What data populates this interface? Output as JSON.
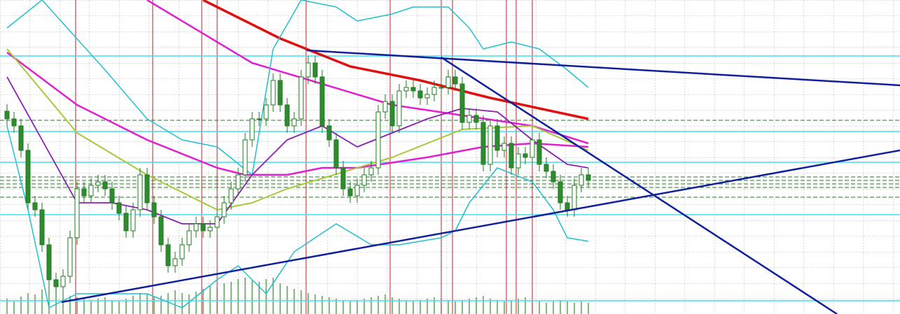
{
  "chart_data": {
    "type": "candlestick",
    "xlim": [
      -1,
      127.5
    ],
    "ylim": [
      0,
      449
    ],
    "bull_color": "#ffffff",
    "bear_color": "#2e8b2e",
    "outline_color": "#1e7a1e",
    "open": [
      290,
      279,
      269,
      234,
      159,
      149,
      99,
      49,
      39,
      54,
      109,
      179,
      169,
      184,
      189,
      179,
      159,
      144,
      119,
      149,
      199,
      159,
      139,
      99,
      69,
      79,
      99,
      119,
      129,
      119,
      124,
      139,
      159,
      179,
      199,
      249,
      279,
      279,
      299,
      334,
      299,
      269,
      279,
      339,
      359,
      339,
      269,
      249,
      209,
      179,
      169,
      184,
      199,
      209,
      289,
      304,
      269,
      319,
      324,
      319,
      309,
      314,
      324,
      324,
      339,
      329,
      274,
      284,
      274,
      214,
      269,
      234,
      244,
      209,
      229,
      224,
      249,
      214,
      204,
      189,
      159,
      149,
      184,
      199
    ],
    "high": [
      300,
      289,
      279,
      244,
      169,
      159,
      109,
      59,
      64,
      119,
      189,
      189,
      194,
      199,
      199,
      189,
      169,
      154,
      159,
      209,
      209,
      169,
      149,
      109,
      89,
      109,
      129,
      139,
      139,
      134,
      149,
      169,
      189,
      209,
      259,
      289,
      289,
      309,
      344,
      344,
      309,
      289,
      349,
      369,
      369,
      349,
      279,
      259,
      219,
      189,
      194,
      209,
      219,
      299,
      314,
      314,
      329,
      334,
      334,
      329,
      324,
      334,
      334,
      349,
      349,
      339,
      294,
      294,
      284,
      279,
      279,
      254,
      254,
      239,
      239,
      259,
      259,
      224,
      214,
      199,
      169,
      194,
      209,
      209
    ],
    "low": [
      269,
      259,
      224,
      149,
      139,
      89,
      39,
      29,
      29,
      44,
      99,
      159,
      159,
      174,
      169,
      149,
      134,
      109,
      109,
      139,
      149,
      129,
      89,
      59,
      59,
      69,
      89,
      109,
      109,
      109,
      114,
      129,
      149,
      169,
      189,
      239,
      269,
      269,
      289,
      289,
      259,
      259,
      269,
      329,
      329,
      259,
      239,
      199,
      169,
      159,
      159,
      174,
      189,
      199,
      279,
      259,
      259,
      309,
      309,
      299,
      299,
      304,
      314,
      314,
      319,
      264,
      264,
      264,
      204,
      204,
      224,
      224,
      199,
      199,
      214,
      214,
      204,
      194,
      179,
      149,
      139,
      139,
      174,
      181
    ],
    "close": [
      279,
      269,
      234,
      159,
      149,
      99,
      49,
      39,
      54,
      109,
      179,
      169,
      184,
      189,
      179,
      159,
      144,
      119,
      149,
      199,
      159,
      139,
      99,
      69,
      79,
      99,
      119,
      129,
      119,
      124,
      139,
      159,
      179,
      199,
      249,
      279,
      279,
      299,
      334,
      299,
      269,
      279,
      339,
      359,
      339,
      269,
      249,
      209,
      179,
      169,
      184,
      199,
      209,
      289,
      304,
      269,
      319,
      324,
      319,
      309,
      314,
      324,
      324,
      339,
      329,
      274,
      284,
      274,
      214,
      269,
      234,
      244,
      209,
      229,
      224,
      249,
      214,
      204,
      189,
      159,
      149,
      184,
      199,
      191
    ],
    "volume_color": "#2e8b2e",
    "volume": [
      22,
      18,
      25,
      30,
      28,
      35,
      40,
      38,
      30,
      26,
      24,
      22,
      20,
      22,
      24,
      20,
      18,
      22,
      26,
      30,
      28,
      24,
      26,
      30,
      34,
      30,
      28,
      32,
      36,
      40,
      38,
      44,
      46,
      50,
      52,
      48,
      46,
      50,
      52,
      44,
      40,
      36,
      34,
      30,
      28,
      26,
      24,
      22,
      20,
      18,
      20,
      22,
      24,
      26,
      28,
      24,
      22,
      20,
      18,
      20,
      22,
      24,
      22,
      20,
      18,
      20,
      22,
      24,
      26,
      22,
      20,
      18,
      20,
      22,
      24,
      20,
      18,
      16,
      18,
      20,
      18,
      16,
      18,
      16
    ],
    "series": [
      {
        "color": "#e01010",
        "width": 3.5,
        "x": [
          28,
          39,
          49,
          59,
          69,
          83
        ],
        "values": [
          449,
          394,
          354,
          334,
          309,
          279
        ]
      },
      {
        "color": "#e020d0",
        "width": 2.5,
        "x": [
          0,
          10,
          20,
          30,
          34,
          40,
          45,
          50,
          60,
          68,
          75,
          83
        ],
        "values": [
          374,
          299,
          249,
          209,
          199,
          199,
          209,
          209,
          224,
          239,
          244,
          239
        ]
      },
      {
        "color": "#e020d0",
        "width": 2.5,
        "x": [
          20,
          35,
          45,
          55,
          65,
          75,
          83
        ],
        "values": [
          449,
          359,
          329,
          299,
          284,
          269,
          244
        ]
      },
      {
        "color": "#a8c83a",
        "width": 2,
        "x": [
          0,
          10,
          20,
          30,
          35,
          40,
          50,
          55,
          65,
          75,
          83
        ],
        "values": [
          379,
          259,
          199,
          149,
          159,
          179,
          209,
          224,
          264,
          269,
          234
        ]
      },
      {
        "color": "#20c0d0",
        "width": 1.5,
        "x": [
          0,
          5,
          14,
          20,
          25,
          30,
          35,
          38,
          42,
          47,
          50,
          55,
          58,
          63,
          66,
          68,
          72,
          76,
          80,
          83
        ],
        "values": [
          409,
          449,
          349,
          279,
          249,
          239,
          199,
          379,
          449,
          439,
          419,
          429,
          439,
          439,
          409,
          379,
          389,
          379,
          349,
          324
        ]
      },
      {
        "color": "#20c0d0",
        "width": 1.5,
        "x": [
          0,
          3,
          6,
          10,
          20,
          25,
          30,
          33,
          37,
          41,
          47,
          52,
          56,
          62,
          64,
          66,
          70,
          75,
          78,
          80,
          83
        ],
        "values": [
          269,
          149,
          9,
          29,
          29,
          9,
          49,
          69,
          29,
          89,
          129,
          99,
          99,
          109,
          119,
          159,
          209,
          189,
          149,
          109,
          104
        ]
      },
      {
        "color": "#8a20b0",
        "width": 1.8,
        "x": [
          0,
          5,
          10,
          15,
          20,
          25,
          30,
          35,
          40,
          45,
          50,
          55,
          60,
          65,
          70,
          75,
          80,
          83
        ],
        "values": [
          339,
          249,
          159,
          159,
          149,
          129,
          129,
          199,
          249,
          269,
          239,
          259,
          279,
          294,
          289,
          249,
          214,
          209
        ]
      }
    ],
    "trendlines": [
      {
        "color": "#10209a",
        "x": [
          7.8,
          127.5
        ],
        "values": [
          17,
          234
        ]
      },
      {
        "color": "#10209a",
        "x": [
          42.8,
          127.5
        ],
        "values": [
          377,
          327
        ]
      },
      {
        "color": "#10209a",
        "x": [
          62,
          118.5
        ],
        "values": [
          367,
          0
        ]
      }
    ],
    "hlines": {
      "color": "#40e0f0",
      "values": [
        369,
        261,
        217,
        142,
        19
      ]
    },
    "dashed_hlines": {
      "color": "#207a20",
      "values": [
        277,
        196,
        191,
        186,
        181,
        167
      ]
    },
    "vlines": {
      "color": "#c02020",
      "x": [
        9.8,
        20.8,
        27.8,
        30,
        42.7,
        54.7,
        62,
        63.6,
        71.3,
        72.7,
        75
      ]
    }
  }
}
